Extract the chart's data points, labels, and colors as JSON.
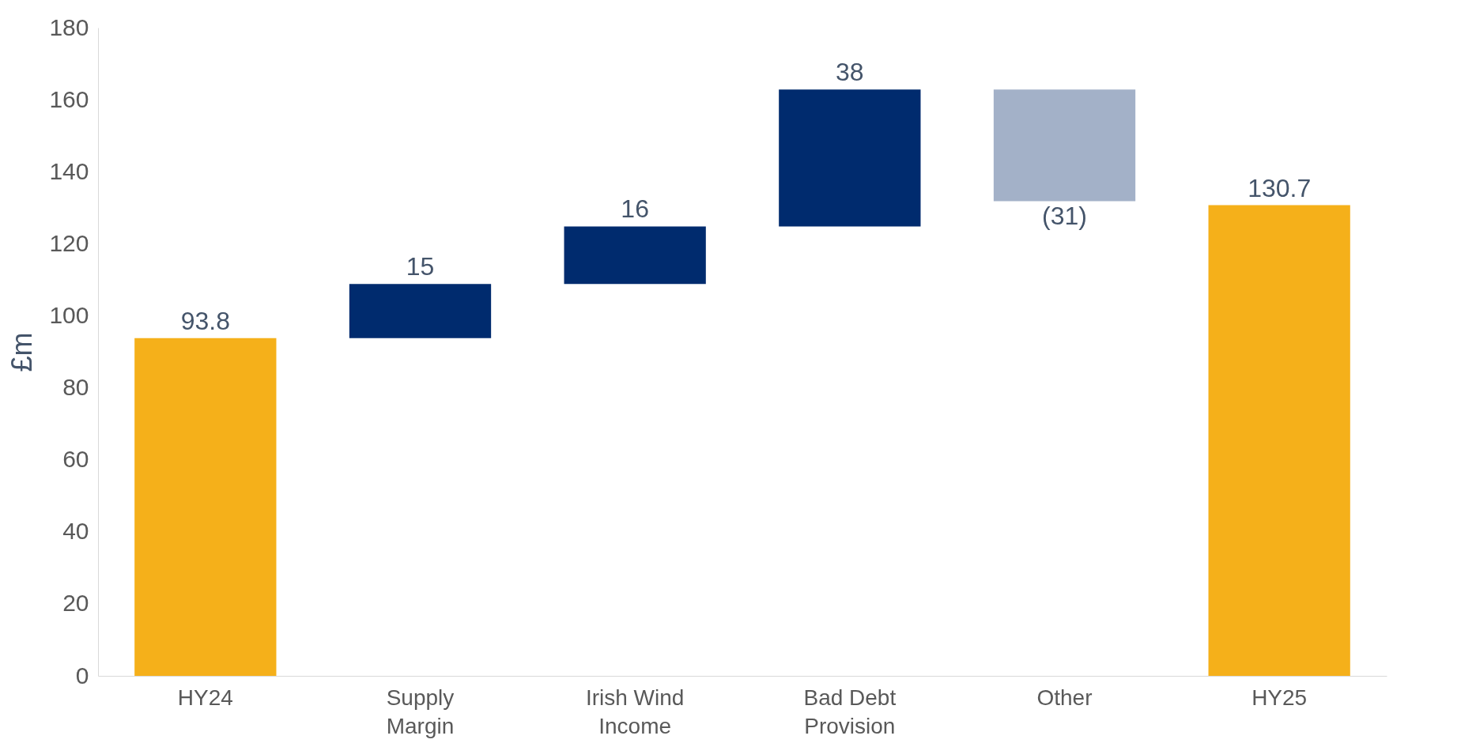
{
  "chart_data": {
    "type": "bar",
    "ylabel": "£m",
    "categories": [
      "HY24",
      "Supply Margin",
      "Irish Wind Income",
      "Bad Debt Provision",
      "Other",
      "HY25"
    ],
    "values": [
      93.8,
      15,
      16,
      38,
      -31,
      130.7
    ],
    "base": [
      0,
      93.8,
      108.8,
      124.8,
      162.8,
      0
    ],
    "colors": [
      "#f5b01a",
      "#002b6e",
      "#002b6e",
      "#002b6e",
      "#a3b1c8",
      "#f5b01a"
    ],
    "value_labels": [
      "93.8",
      "15",
      "16",
      "38",
      "(31)",
      "130.7"
    ],
    "ylim": [
      0,
      180
    ],
    "yticks": [
      0,
      20,
      40,
      60,
      80,
      100,
      120,
      140,
      160,
      180
    ],
    "grid": false
  }
}
